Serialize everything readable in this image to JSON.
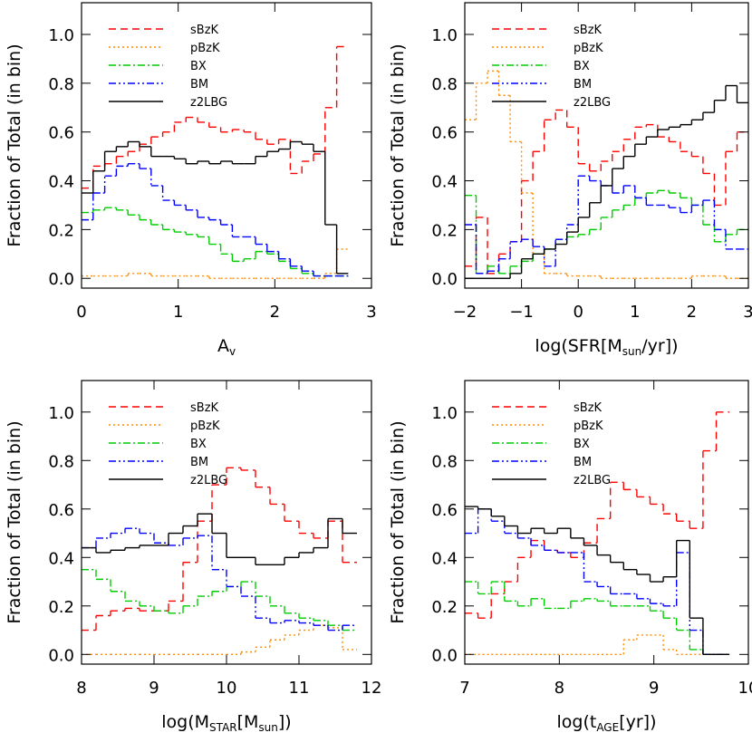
{
  "chart_data": [
    {
      "type": "histogram",
      "ylabel": "Fraction of Total (in bin)",
      "xlabel": [
        {
          "text": "A"
        },
        {
          "text": "v",
          "sub": true
        }
      ],
      "xlim": [
        0,
        3
      ],
      "xticks": [
        0,
        1,
        2,
        3
      ],
      "ylim": [
        -0.04,
        1.13
      ],
      "yticks": [
        {
          "value": 0,
          "label": "0.0"
        },
        0.2,
        0.4,
        0.6,
        0.8,
        {
          "value": 1,
          "label": "1.0"
        }
      ],
      "legend": "upper left",
      "bins": [
        0,
        0.12,
        0.24,
        0.36,
        0.48,
        0.6,
        0.72,
        0.84,
        0.96,
        1.08,
        1.2,
        1.32,
        1.44,
        1.56,
        1.68,
        1.8,
        1.92,
        2.04,
        2.16,
        2.28,
        2.4,
        2.52,
        2.64,
        2.76
      ],
      "series": [
        {
          "name": "sBzK",
          "color": "#ff0000",
          "dash": "dashed",
          "values": [
            0.37,
            0.46,
            0.47,
            0.5,
            0.52,
            0.55,
            0.58,
            0.6,
            0.64,
            0.66,
            0.64,
            0.62,
            0.6,
            0.61,
            0.6,
            0.57,
            0.55,
            0.57,
            0.43,
            0.48,
            0.51,
            0.7,
            0.95
          ]
        },
        {
          "name": "pBzK",
          "color": "#ff8c00",
          "dash": "dotted",
          "values": [
            0.01,
            0.01,
            0.01,
            0.01,
            0.02,
            0.02,
            0.01,
            0.01,
            0.01,
            0.01,
            0.01,
            0,
            0,
            0,
            0,
            0,
            0,
            0,
            0,
            0,
            0,
            0.02,
            0.12
          ]
        },
        {
          "name": "BX",
          "color": "#00cc00",
          "dash": "dashdot",
          "values": [
            0.27,
            0.28,
            0.29,
            0.28,
            0.26,
            0.24,
            0.22,
            0.2,
            0.19,
            0.18,
            0.17,
            0.14,
            0.1,
            0.07,
            0.08,
            0.11,
            0.1,
            0.07,
            0.04,
            0.02,
            0.01,
            0.01,
            0.01
          ]
        },
        {
          "name": "BM",
          "color": "#0000ff",
          "dash": "dashdotdot",
          "values": [
            0.24,
            0.35,
            0.42,
            0.46,
            0.47,
            0.45,
            0.38,
            0.32,
            0.3,
            0.28,
            0.25,
            0.24,
            0.22,
            0.17,
            0.17,
            0.14,
            0.11,
            0.08,
            0.05,
            0.03,
            0.01,
            0.01,
            0.01
          ]
        },
        {
          "name": "z2LBG",
          "color": "#000000",
          "dash": "solid",
          "values": [
            0.35,
            0.44,
            0.52,
            0.54,
            0.56,
            0.54,
            0.5,
            0.5,
            0.49,
            0.47,
            0.48,
            0.47,
            0.48,
            0.47,
            0.47,
            0.5,
            0.52,
            0.53,
            0.56,
            0.55,
            0.52,
            0.22,
            0.02
          ]
        }
      ]
    },
    {
      "type": "histogram",
      "ylabel": "Fraction of Total (in bin)",
      "xlabel": [
        {
          "text": "log(SFR[M"
        },
        {
          "text": "sun",
          "sub": true
        },
        {
          "text": "/yr])"
        }
      ],
      "xlim": [
        -2,
        3
      ],
      "xticks": [
        {
          "value": -2,
          "label": "−2"
        },
        {
          "value": -1,
          "label": "−1"
        },
        0,
        1,
        2,
        3
      ],
      "ylim": [
        -0.04,
        1.13
      ],
      "yticks": [
        {
          "value": 0,
          "label": "0.0"
        },
        0.2,
        0.4,
        0.6,
        0.8,
        {
          "value": 1,
          "label": "1.0"
        }
      ],
      "legend": "upper left",
      "bins": [
        -2,
        -1.8,
        -1.6,
        -1.4,
        -1.2,
        -1,
        -0.8,
        -0.6,
        -0.4,
        -0.2,
        0,
        0.2,
        0.4,
        0.6,
        0.8,
        1,
        1.2,
        1.4,
        1.6,
        1.8,
        2,
        2.2,
        2.4,
        2.6,
        2.8,
        3
      ],
      "series": [
        {
          "name": "sBzK",
          "color": "#ff0000",
          "dash": "dashed",
          "values": [
            0.05,
            0.25,
            0.02,
            0.1,
            0.15,
            0.4,
            0.52,
            0.65,
            0.69,
            0.62,
            0.47,
            0.44,
            0.48,
            0.52,
            0.57,
            0.62,
            0.63,
            0.58,
            0.56,
            0.52,
            0.5,
            0.43,
            0.3,
            0.52,
            0.6
          ]
        },
        {
          "name": "pBzK",
          "color": "#ff8c00",
          "dash": "dotted",
          "values": [
            0.65,
            0.8,
            0.85,
            0.75,
            0.56,
            0.35,
            0.1,
            0.02,
            0.02,
            0.01,
            0.01,
            0.01,
            0,
            0,
            0,
            0,
            0,
            0,
            0,
            0,
            0.01,
            0.01,
            0.01,
            0,
            0
          ]
        },
        {
          "name": "BX",
          "color": "#00cc00",
          "dash": "dashdot",
          "values": [
            0.34,
            0.02,
            0.05,
            0.02,
            0.05,
            0.07,
            0.1,
            0.12,
            0.16,
            0.17,
            0.18,
            0.2,
            0.25,
            0.28,
            0.3,
            0.33,
            0.35,
            0.36,
            0.35,
            0.33,
            0.3,
            0.22,
            0.15,
            0.18,
            0.2
          ]
        },
        {
          "name": "BM",
          "color": "#0000ff",
          "dash": "dashdotdot",
          "values": [
            0.22,
            0.02,
            0.03,
            0.08,
            0.15,
            0.16,
            0.13,
            0.05,
            0.16,
            0.22,
            0.42,
            0.4,
            0.38,
            0.35,
            0.38,
            0.33,
            0.3,
            0.3,
            0.29,
            0.27,
            0.3,
            0.32,
            0.2,
            0.12,
            0.12
          ]
        },
        {
          "name": "z2LBG",
          "color": "#000000",
          "dash": "solid",
          "values": [
            0,
            0,
            0,
            0,
            0.02,
            0.08,
            0.1,
            0.12,
            0.14,
            0.19,
            0.25,
            0.31,
            0.38,
            0.45,
            0.5,
            0.55,
            0.58,
            0.61,
            0.62,
            0.63,
            0.65,
            0.68,
            0.73,
            0.79,
            0.72
          ]
        }
      ]
    },
    {
      "type": "histogram",
      "ylabel": "Fraction of Total (in bin)",
      "xlabel": [
        {
          "text": "log(M"
        },
        {
          "text": "STAR",
          "sub": true
        },
        {
          "text": "[M"
        },
        {
          "text": "sun",
          "sub": true
        },
        {
          "text": "])"
        }
      ],
      "xlim": [
        8,
        12
      ],
      "xticks": [
        8,
        9,
        10,
        11,
        12
      ],
      "ylim": [
        -0.04,
        1.13
      ],
      "yticks": [
        {
          "value": 0,
          "label": "0.0"
        },
        0.2,
        0.4,
        0.6,
        0.8,
        {
          "value": 1,
          "label": "1.0"
        }
      ],
      "legend": "upper left",
      "bins": [
        8,
        8.2,
        8.4,
        8.6,
        8.8,
        9,
        9.2,
        9.4,
        9.6,
        9.8,
        10,
        10.2,
        10.4,
        10.6,
        10.8,
        11,
        11.2,
        11.4,
        11.6,
        11.8
      ],
      "series": [
        {
          "name": "sBzK",
          "color": "#ff0000",
          "dash": "dashed",
          "values": [
            0.1,
            0.16,
            0.18,
            0.19,
            0.18,
            0.18,
            0.22,
            0.38,
            0.55,
            0.7,
            0.77,
            0.76,
            0.69,
            0.62,
            0.55,
            0.5,
            0.48,
            0.55,
            0.38
          ]
        },
        {
          "name": "pBzK",
          "color": "#ff8c00",
          "dash": "dotted",
          "values": [
            0,
            0,
            0,
            0,
            0,
            0,
            0,
            0,
            0,
            0,
            0,
            0.01,
            0.03,
            0.06,
            0.08,
            0.1,
            0.12,
            0.11,
            0.02
          ]
        },
        {
          "name": "BX",
          "color": "#00cc00",
          "dash": "dashdot",
          "values": [
            0.35,
            0.31,
            0.26,
            0.22,
            0.2,
            0.18,
            0.17,
            0.2,
            0.24,
            0.26,
            0.28,
            0.3,
            0.24,
            0.2,
            0.17,
            0.15,
            0.14,
            0.12,
            0.1
          ]
        },
        {
          "name": "BM",
          "color": "#0000ff",
          "dash": "dashdotdot",
          "values": [
            0.44,
            0.48,
            0.5,
            0.52,
            0.5,
            0.46,
            0.45,
            0.48,
            0.49,
            0.35,
            0.28,
            0.24,
            0.15,
            0.13,
            0.14,
            0.13,
            0.12,
            0.1,
            0.12
          ]
        },
        {
          "name": "z2LBG",
          "color": "#000000",
          "dash": "solid",
          "values": [
            0.44,
            0.42,
            0.43,
            0.44,
            0.45,
            0.45,
            0.5,
            0.53,
            0.58,
            0.5,
            0.4,
            0.4,
            0.37,
            0.37,
            0.4,
            0.42,
            0.44,
            0.56,
            0.5
          ]
        }
      ]
    },
    {
      "type": "histogram",
      "ylabel": "Fraction of Total (in bin)",
      "xlabel": [
        {
          "text": "log(t"
        },
        {
          "text": "AGE",
          "sub": true
        },
        {
          "text": "[yr])"
        }
      ],
      "xlim": [
        7,
        10
      ],
      "xticks": [
        7,
        8,
        9,
        10
      ],
      "ylim": [
        -0.04,
        1.13
      ],
      "yticks": [
        {
          "value": 0,
          "label": "0.0"
        },
        0.2,
        0.4,
        0.6,
        0.8,
        {
          "value": 1,
          "label": "1.0"
        }
      ],
      "legend": "upper left",
      "bins": [
        7,
        7.14,
        7.28,
        7.42,
        7.56,
        7.7,
        7.84,
        7.98,
        8.12,
        8.26,
        8.4,
        8.54,
        8.68,
        8.82,
        8.96,
        9.1,
        9.24,
        9.38,
        9.52,
        9.66,
        9.8
      ],
      "series": [
        {
          "name": "sBzK",
          "color": "#ff0000",
          "dash": "dashed",
          "values": [
            0.17,
            0.15,
            0.25,
            0.3,
            0.4,
            0.47,
            0.43,
            0.42,
            0.4,
            0.46,
            0.56,
            0.71,
            0.68,
            0.65,
            0.62,
            0.58,
            0.55,
            0.52,
            0.84,
            1.0
          ]
        },
        {
          "name": "pBzK",
          "color": "#ff8c00",
          "dash": "dotted",
          "values": [
            0,
            0,
            0,
            0,
            0,
            0,
            0,
            0,
            0,
            0,
            0,
            0,
            0.06,
            0.08,
            0.08,
            0.02,
            0,
            0,
            0,
            0
          ]
        },
        {
          "name": "BX",
          "color": "#00cc00",
          "dash": "dashdot",
          "values": [
            0.3,
            0.25,
            0.3,
            0.22,
            0.2,
            0.23,
            0.19,
            0.19,
            0.22,
            0.23,
            0.22,
            0.2,
            0.2,
            0.2,
            0.18,
            0.15,
            0.1,
            0.02,
            0,
            0
          ]
        },
        {
          "name": "BM",
          "color": "#0000ff",
          "dash": "dashdotdot",
          "values": [
            0.5,
            0.6,
            0.55,
            0.5,
            0.48,
            0.45,
            0.43,
            0.42,
            0.42,
            0.3,
            0.28,
            0.25,
            0.25,
            0.23,
            0.21,
            0.2,
            0.42,
            0.1,
            0,
            0
          ]
        },
        {
          "name": "z2LBG",
          "color": "#000000",
          "dash": "solid",
          "values": [
            0.61,
            0.6,
            0.57,
            0.53,
            0.5,
            0.52,
            0.5,
            0.52,
            0.48,
            0.45,
            0.41,
            0.38,
            0.35,
            0.33,
            0.3,
            0.32,
            0.47,
            0.15,
            0,
            0
          ]
        }
      ]
    }
  ]
}
